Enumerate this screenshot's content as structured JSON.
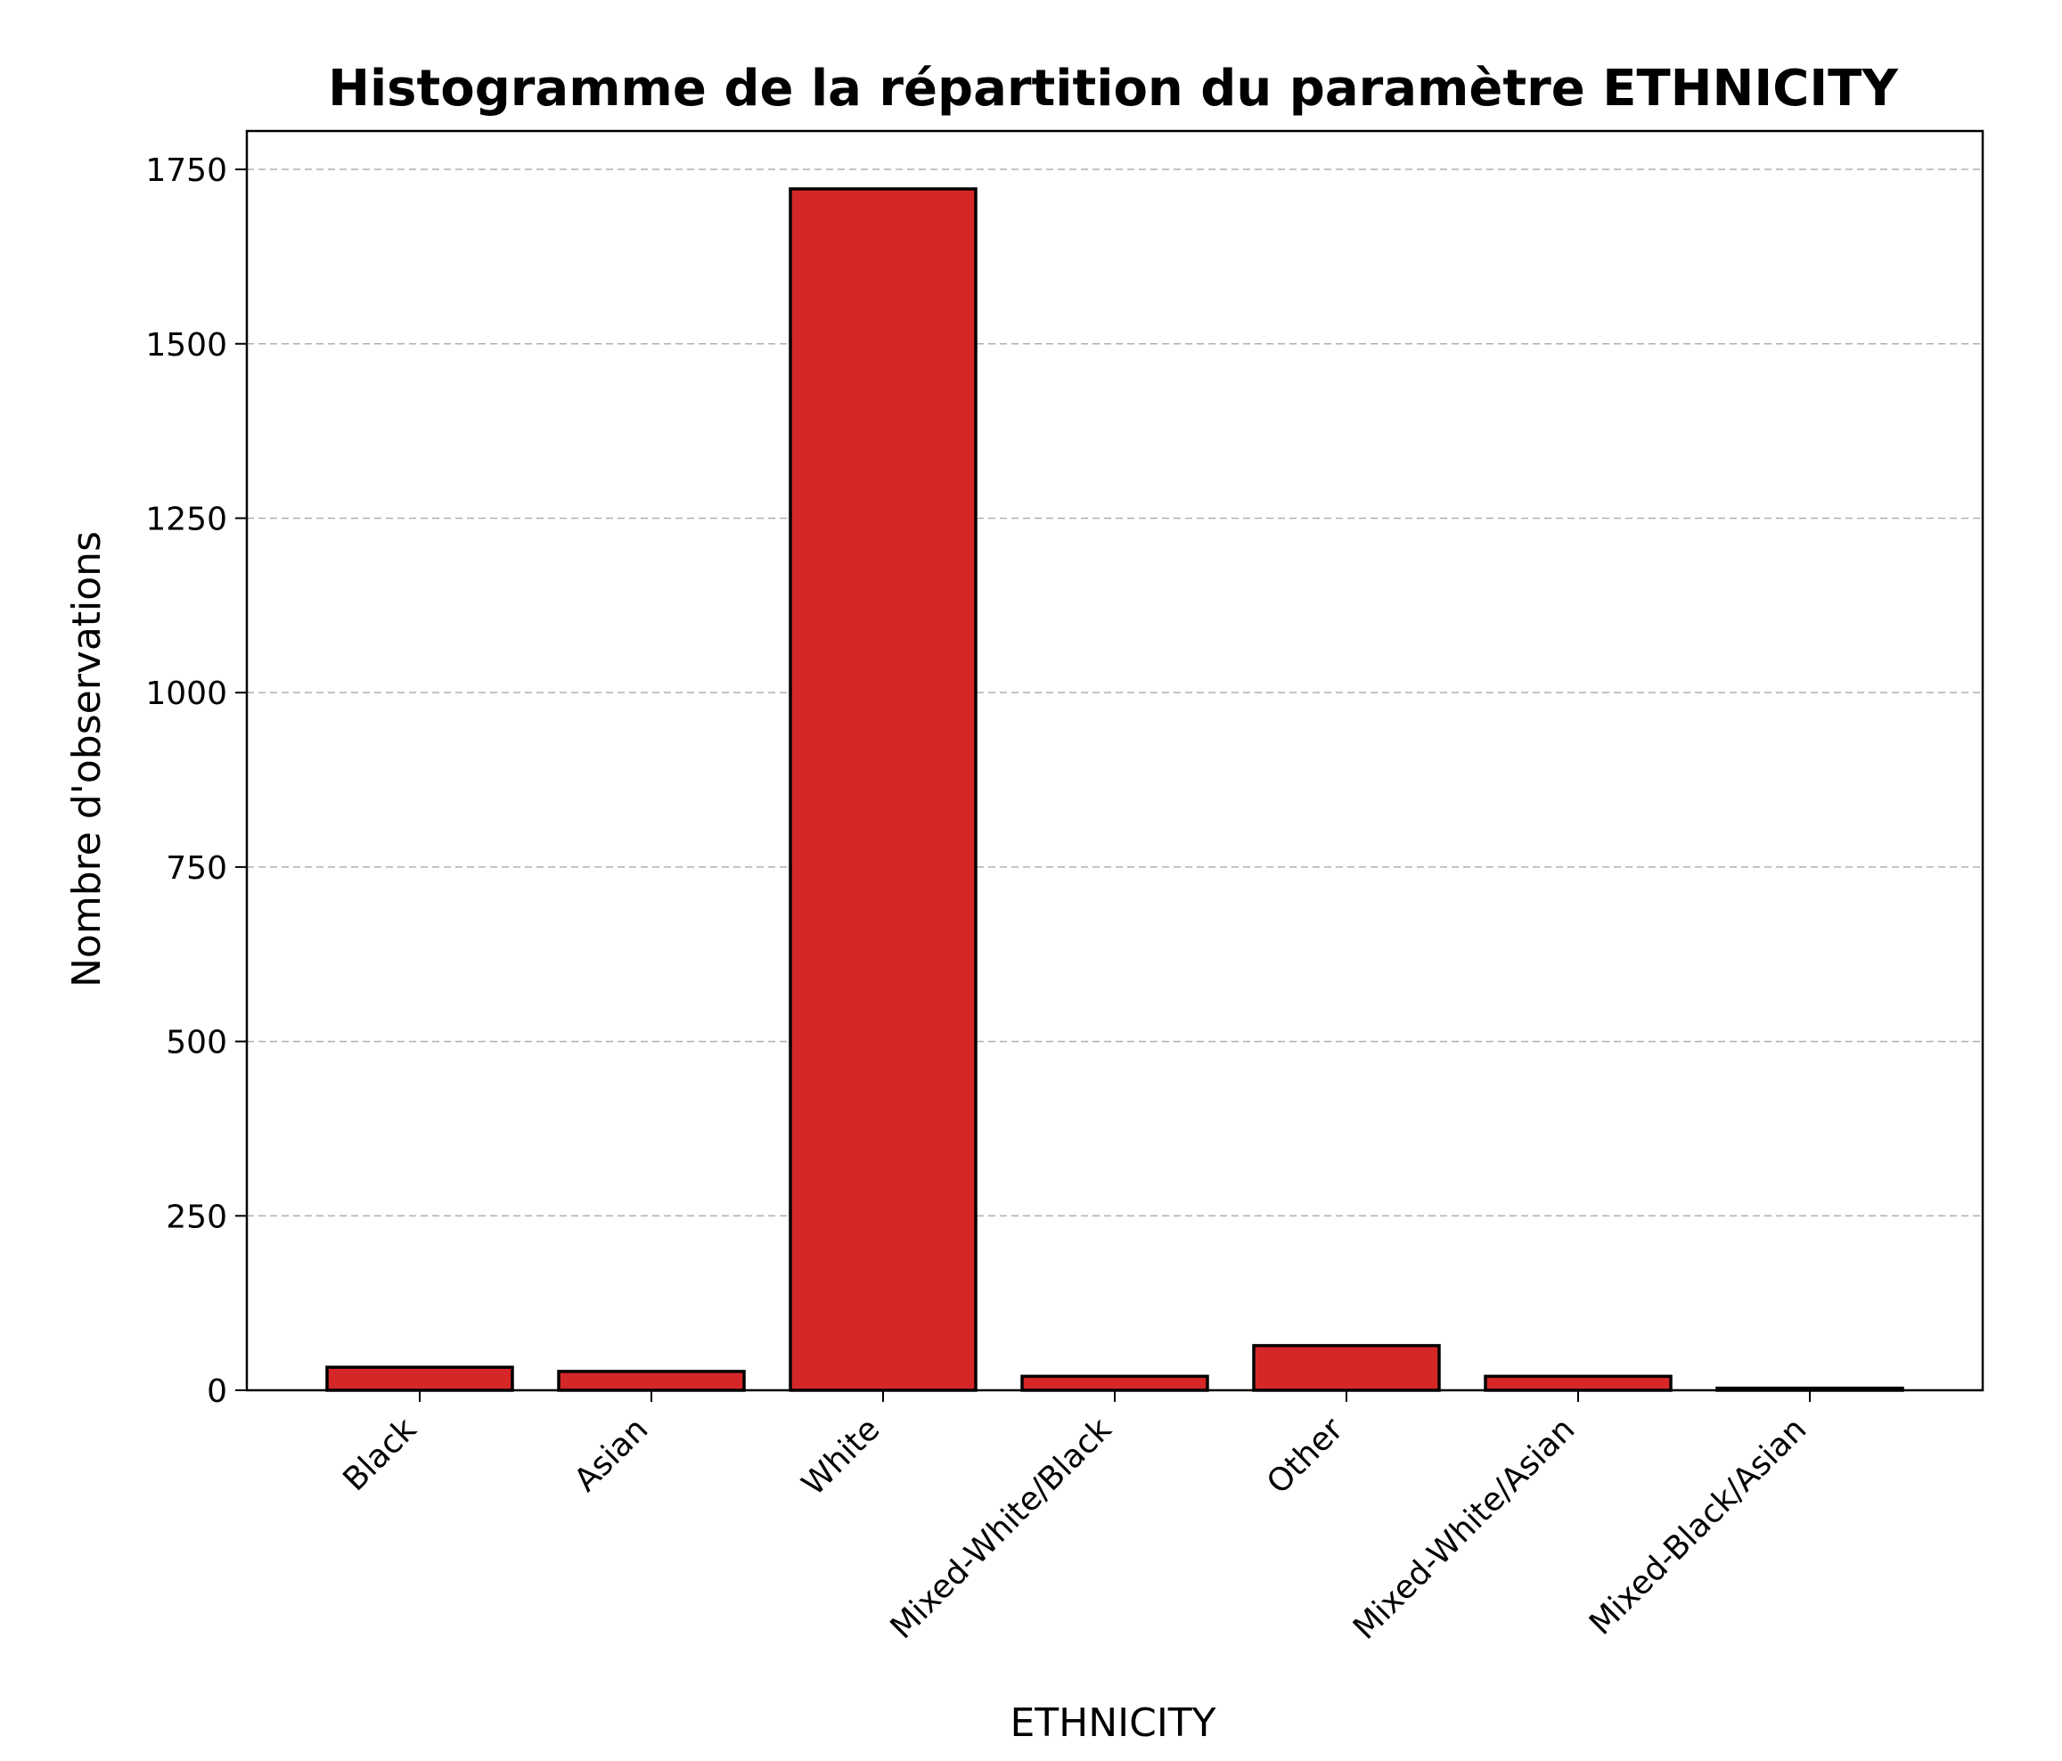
{
  "chart_data": {
    "type": "bar",
    "title": "Histogramme de la répartition du paramètre ETHNICITY",
    "xlabel": "ETHNICITY",
    "ylabel": "Nombre d'observations",
    "categories": [
      "Black",
      "Asian",
      "White",
      "Mixed-White/Black",
      "Other",
      "Mixed-White/Asian",
      "Mixed-Black/Asian"
    ],
    "values": [
      33,
      27,
      1722,
      20,
      64,
      20,
      3
    ],
    "ylim": [
      0,
      1805
    ],
    "yticks": [
      0,
      250,
      500,
      750,
      1000,
      1250,
      1500,
      1750
    ],
    "grid": "y-dashed",
    "legend": "none",
    "bar_color": "#d62728",
    "edge_color": "#000000"
  }
}
